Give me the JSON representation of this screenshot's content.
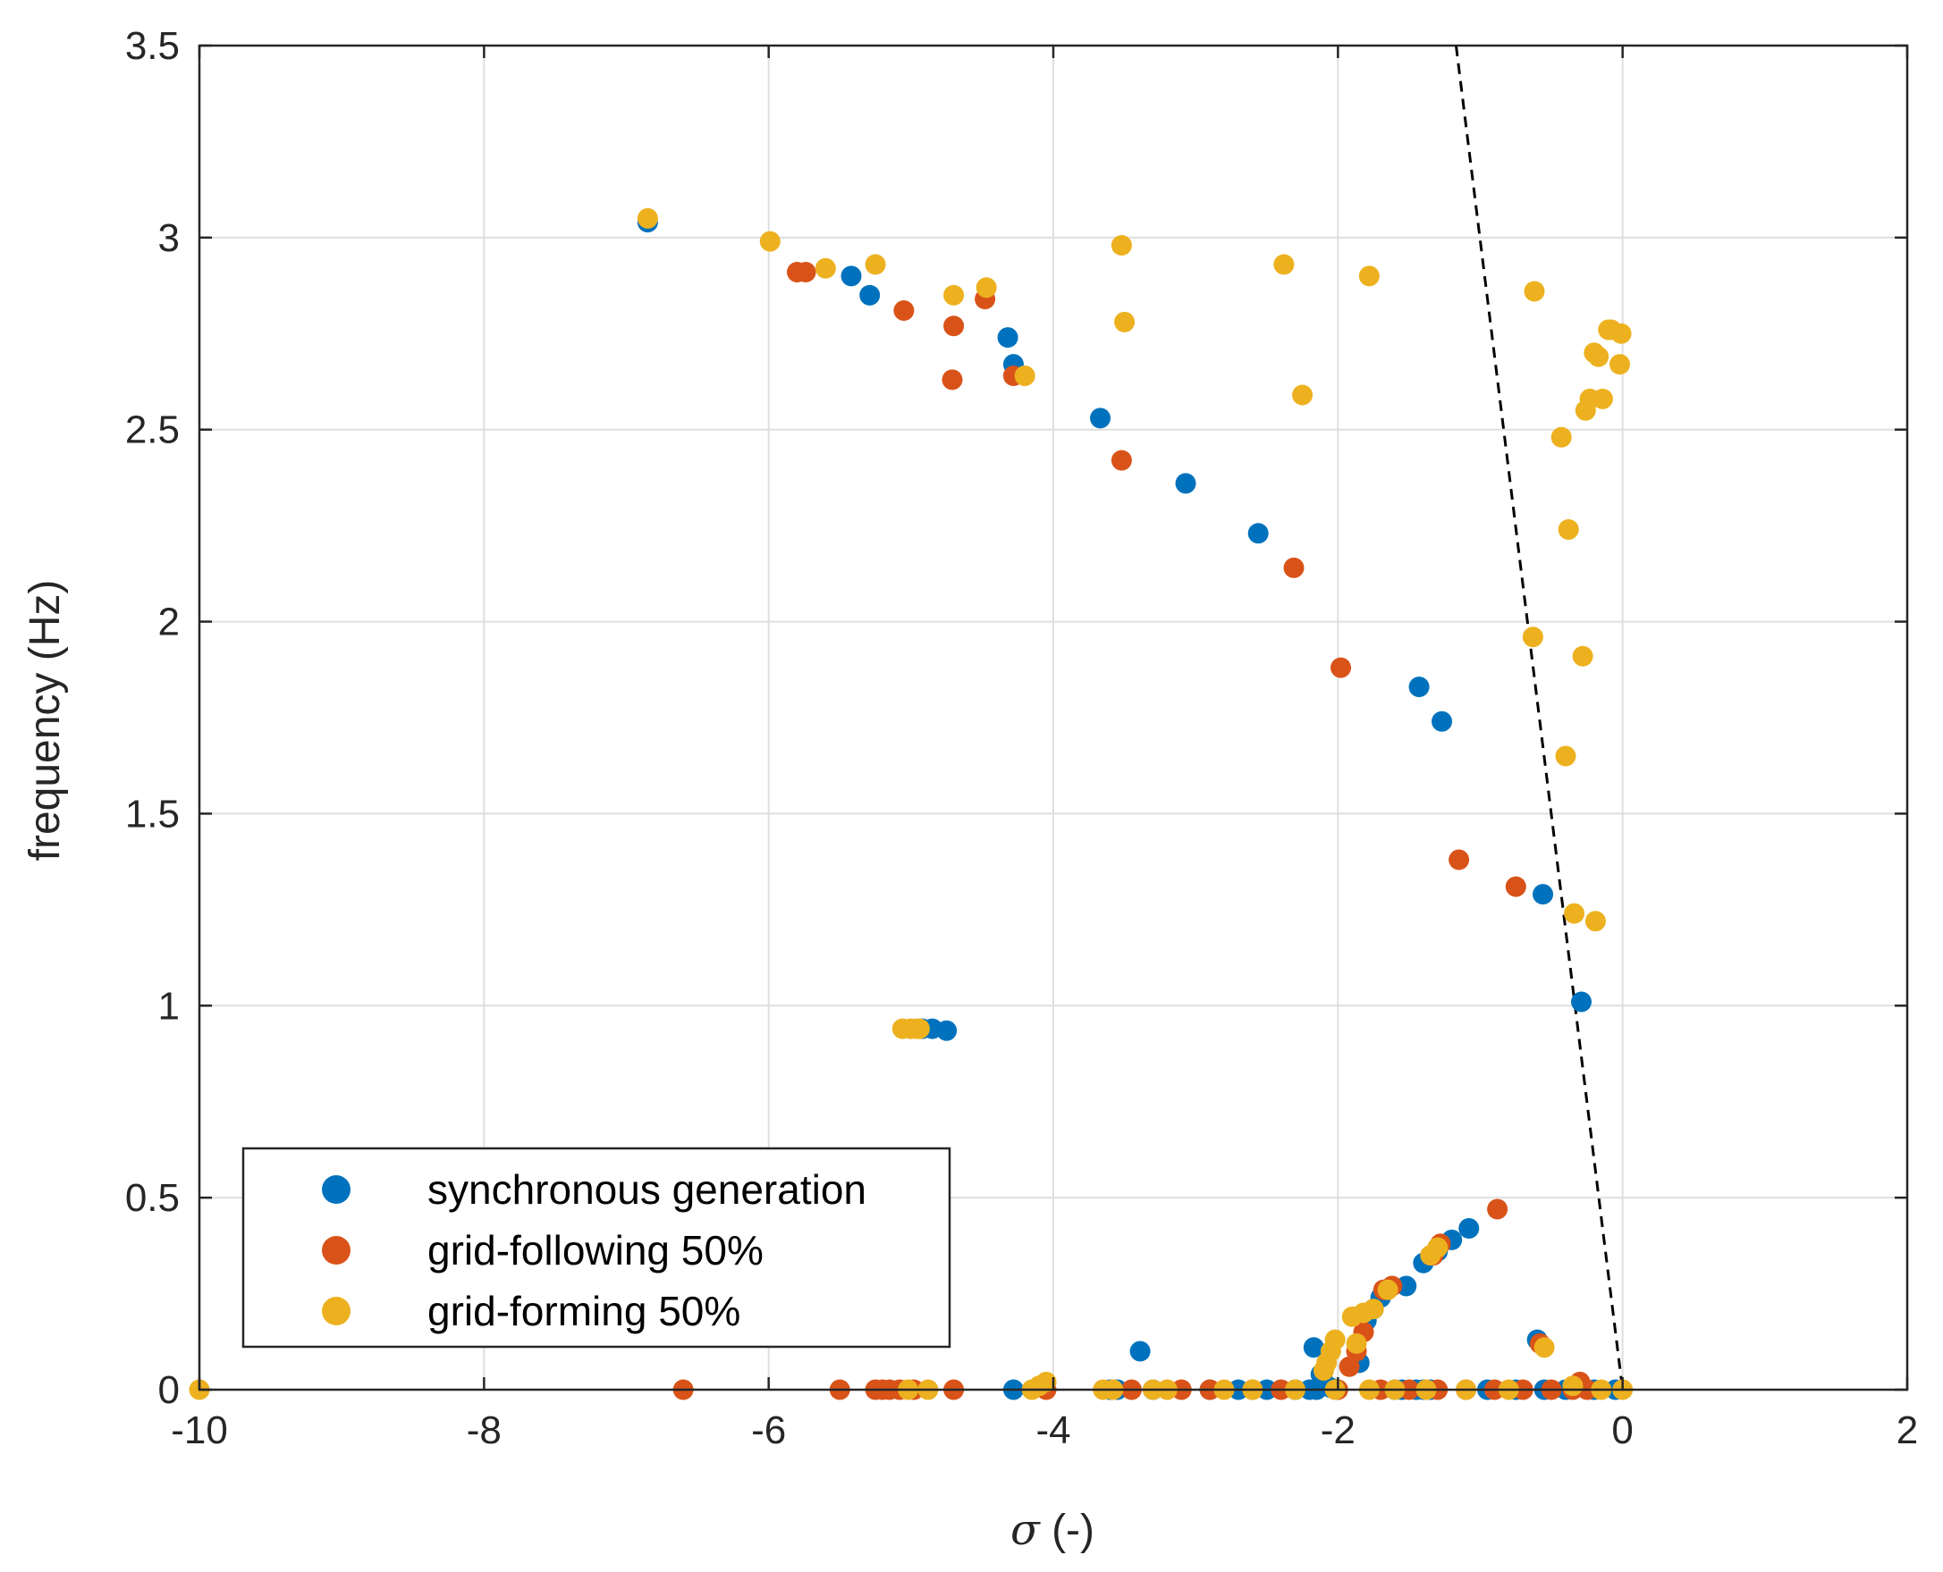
{
  "chart_data": {
    "type": "scatter",
    "title": "",
    "xlabel_symbol": "σ",
    "xlabel_unit": " (-)",
    "ylabel": "frequency (Hz)",
    "xlim": [
      -10,
      2
    ],
    "ylim": [
      0,
      3.5
    ],
    "xticks": [
      -10,
      -8,
      -6,
      -4,
      -2,
      0,
      2
    ],
    "xtick_labels": [
      "-10",
      "-8",
      "-6",
      "-4",
      "-2",
      "0",
      "2"
    ],
    "yticks": [
      0,
      0.5,
      1,
      1.5,
      2,
      2.5,
      3,
      3.5
    ],
    "ytick_labels": [
      "0",
      "0.5",
      "1",
      "1.5",
      "2",
      "2.5",
      "3",
      "3.5"
    ],
    "grid": true,
    "legend_position": "bottom-left",
    "reference_line": {
      "style": "dashed",
      "color": "#000000",
      "x": [
        -1.17,
        0
      ],
      "y": [
        3.5,
        0
      ]
    },
    "series": [
      {
        "name": "synchronous generation",
        "color": "#0072BD",
        "x": [
          -6.85,
          -5.42,
          -5.29,
          -4.32,
          -4.28,
          -3.67,
          -3.07,
          -2.56,
          -1.43,
          -1.27,
          -0.56,
          -0.29,
          -4.75,
          -4.85,
          -4.92,
          -3.39,
          -2.17,
          -2.12,
          -2.1,
          -2.08,
          -2.05,
          -1.85,
          -1.8,
          -1.75,
          -1.7,
          -1.52,
          -1.4,
          -1.3,
          -1.2,
          -1.08,
          -0.6,
          -4.28,
          -3.6,
          -3.55,
          -3.3,
          -2.9,
          -2.7,
          -2.5,
          -2.3,
          -2.2,
          -2.15,
          -1.6,
          -1.55,
          -1.45,
          -1.4,
          -1.35,
          -0.95,
          -0.75,
          -0.55,
          -0.4,
          -0.2,
          -0.05
        ],
        "y": [
          3.04,
          2.9,
          2.85,
          2.74,
          2.67,
          2.53,
          2.36,
          2.23,
          1.83,
          1.74,
          1.29,
          1.01,
          0.935,
          0.94,
          0.94,
          0.1,
          0.11,
          0.04,
          0.02,
          0.01,
          0.005,
          0.07,
          0.18,
          0.21,
          0.24,
          0.27,
          0.33,
          0.36,
          0.39,
          0.42,
          0.13,
          0,
          0,
          0,
          0,
          0,
          0,
          0,
          0,
          0,
          0,
          0,
          0,
          0,
          0,
          0,
          0,
          0,
          0,
          0,
          0,
          0
        ]
      },
      {
        "name": "grid-following 50%",
        "color": "#D95319",
        "x": [
          -5.8,
          -5.74,
          -5.05,
          -4.48,
          -4.7,
          -4.71,
          -4.28,
          -3.52,
          -2.31,
          -1.98,
          -1.15,
          -0.75,
          -0.88,
          -1.82,
          -1.87,
          -1.92,
          -1.68,
          -1.62,
          -1.33,
          -1.28,
          -0.58,
          -0.3,
          -6.6,
          -5.5,
          -5.25,
          -5.2,
          -5.15,
          -5.08,
          -4.98,
          -4.7,
          -4.05,
          -3.45,
          -3.1,
          -2.9,
          -2.6,
          -2.4,
          -2.0,
          -1.7,
          -1.5,
          -1.3,
          -1.1,
          -0.9,
          -0.7,
          -0.5,
          -0.35,
          -0.25
        ],
        "y": [
          2.91,
          2.91,
          2.81,
          2.84,
          2.77,
          2.63,
          2.64,
          2.42,
          2.14,
          1.88,
          1.38,
          1.31,
          0.47,
          0.15,
          0.1,
          0.06,
          0.26,
          0.27,
          0.35,
          0.38,
          0.12,
          0.02,
          0,
          0,
          0,
          0,
          0,
          0,
          0,
          0,
          0,
          0,
          0,
          0,
          0,
          0,
          0,
          0,
          0,
          0,
          0,
          0,
          0,
          0,
          0,
          0
        ]
      },
      {
        "name": "grid-forming 50%",
        "color": "#EDB120",
        "x": [
          -6.85,
          -5.99,
          -5.6,
          -5.25,
          -4.7,
          -4.47,
          -4.2,
          -3.52,
          -3.5,
          -2.38,
          -2.25,
          -1.78,
          -0.62,
          -0.43,
          -0.38,
          -0.26,
          -0.23,
          -0.2,
          -0.17,
          -0.14,
          -0.1,
          -0.08,
          -0.02,
          -0.01,
          -0.63,
          -0.28,
          -0.4,
          -0.34,
          -0.19,
          -5.06,
          -5.0,
          -4.96,
          -4.94,
          -1.87,
          -1.9,
          -1.75,
          -1.82,
          -1.65,
          -1.35,
          -1.3,
          -2.02,
          -2.05,
          -2.08,
          -2.1,
          -0.55,
          -10.0,
          -5.02,
          -4.88,
          -4.15,
          -4.1,
          -4.05,
          -3.65,
          -3.58,
          -3.3,
          -3.2,
          -2.8,
          -2.6,
          -2.3,
          -2.02,
          -1.78,
          -1.6,
          -1.38,
          -1.1,
          -0.8,
          -0.35,
          -0.15,
          0.0
        ],
        "y": [
          3.05,
          2.99,
          2.92,
          2.93,
          2.85,
          2.87,
          2.64,
          2.98,
          2.78,
          2.93,
          2.59,
          2.9,
          2.86,
          2.48,
          2.24,
          2.55,
          2.58,
          2.7,
          2.69,
          2.58,
          2.76,
          2.76,
          2.67,
          2.75,
          1.96,
          1.91,
          1.65,
          1.24,
          1.22,
          0.94,
          0.94,
          0.94,
          0.94,
          0.12,
          0.19,
          0.21,
          0.2,
          0.26,
          0.35,
          0.37,
          0.13,
          0.1,
          0.07,
          0.05,
          0.11,
          0,
          0,
          0,
          0,
          0.01,
          0.02,
          0,
          0,
          0,
          0,
          0,
          0,
          0,
          0,
          0,
          0,
          0,
          0,
          0,
          0.01,
          0,
          0
        ]
      }
    ]
  }
}
